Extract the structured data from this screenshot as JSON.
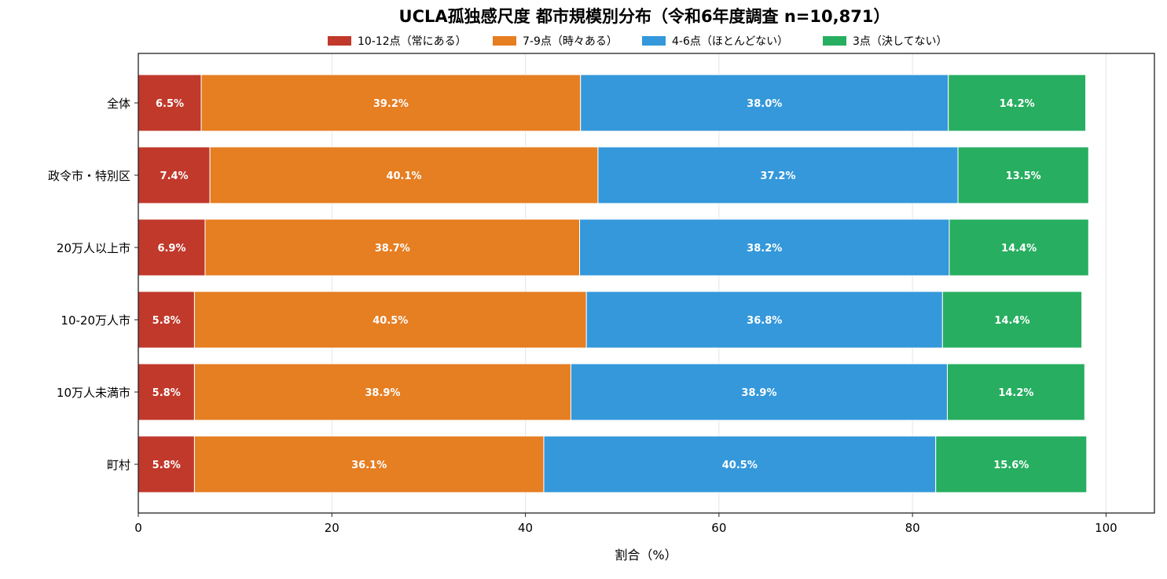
{
  "chart_data": {
    "type": "bar",
    "orientation": "horizontal",
    "stacked": true,
    "title": "UCLA孤独感尺度 都市規模別分布（令和6年度調査 n=10,871）",
    "xlabel": "割合（%）",
    "ylabel": "",
    "xlim": [
      0,
      105
    ],
    "xticks": [
      0,
      20,
      40,
      60,
      80,
      100
    ],
    "grid": true,
    "legend_position": "bottom-right",
    "categories": [
      "全体",
      "政令市・特別区",
      "20万人以上市",
      "10-20万人市",
      "10万人未満市",
      "町村"
    ],
    "series": [
      {
        "name": "10-12点（常にある）",
        "color": "#c0392b",
        "values": [
          6.5,
          7.4,
          6.9,
          5.8,
          5.8,
          5.8
        ]
      },
      {
        "name": "7-9点（時々ある）",
        "color": "#e67e22",
        "values": [
          39.2,
          40.1,
          38.7,
          40.5,
          38.9,
          36.1
        ]
      },
      {
        "name": "4-6点（ほとんどない）",
        "color": "#3498db",
        "values": [
          38.0,
          37.2,
          38.2,
          36.8,
          38.9,
          40.5
        ]
      },
      {
        "name": "3点（決してない）",
        "color": "#27ae60",
        "values": [
          14.2,
          13.5,
          14.4,
          14.4,
          14.2,
          15.6
        ]
      }
    ]
  }
}
